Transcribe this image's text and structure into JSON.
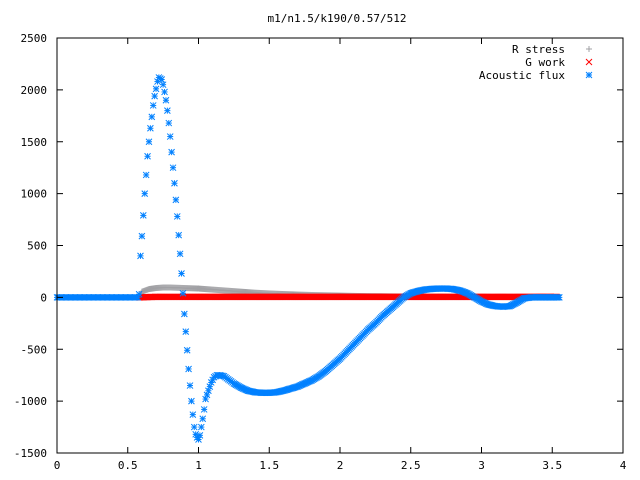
{
  "chart_data": {
    "type": "scatter",
    "title": "m1/n1.5/k190/0.57/512",
    "xlabel": "",
    "ylabel": "",
    "xlim": [
      0,
      4
    ],
    "ylim": [
      -1500,
      2500
    ],
    "xticks": [
      "0",
      "0.5",
      "1",
      "1.5",
      "2",
      "2.5",
      "3",
      "3.5",
      "4"
    ],
    "yticks": [
      "-1500",
      "-1000",
      "-500",
      "0",
      "500",
      "1000",
      "1500",
      "2000",
      "2500"
    ],
    "legend_position": "top-right",
    "grid": false,
    "series": [
      {
        "name": "R stress",
        "marker": "plus",
        "color": "#a0a0a4",
        "x": [
          0.58,
          0.6,
          0.65,
          0.7,
          0.75,
          0.8,
          0.9,
          1.0,
          1.1,
          1.2,
          1.3,
          1.4,
          1.5,
          1.6,
          1.7,
          1.8,
          1.9,
          2.0,
          2.1,
          2.2,
          2.4,
          2.6,
          2.8,
          3.0,
          3.2,
          3.4,
          3.53
        ],
        "y": [
          0,
          55,
          80,
          90,
          95,
          95,
          90,
          85,
          75,
          65,
          55,
          45,
          38,
          32,
          27,
          23,
          20,
          17,
          14,
          12,
          9,
          7,
          5,
          4,
          3,
          2,
          1
        ]
      },
      {
        "name": "G work",
        "marker": "cross",
        "color": "#ff0000",
        "x": [
          0.58,
          0.7,
          0.85,
          1.0,
          1.2,
          1.4,
          1.6,
          1.8,
          2.0,
          2.2,
          2.4,
          2.6,
          2.8,
          3.0,
          3.2,
          3.4,
          3.53
        ],
        "y": [
          0,
          5,
          5,
          5,
          5,
          5,
          5,
          5,
          5,
          5,
          5,
          5,
          5,
          5,
          5,
          5,
          5
        ]
      },
      {
        "name": "Acoustic flux",
        "marker": "star",
        "color": "#0080ff",
        "x": [
          0.0,
          0.57,
          0.58,
          0.59,
          0.6,
          0.61,
          0.62,
          0.63,
          0.64,
          0.65,
          0.66,
          0.67,
          0.68,
          0.69,
          0.7,
          0.71,
          0.72,
          0.73,
          0.74,
          0.75,
          0.76,
          0.77,
          0.78,
          0.79,
          0.8,
          0.81,
          0.82,
          0.83,
          0.84,
          0.85,
          0.86,
          0.87,
          0.88,
          0.89,
          0.9,
          0.91,
          0.92,
          0.93,
          0.94,
          0.95,
          0.96,
          0.97,
          0.98,
          0.99,
          1.0,
          1.01,
          1.02,
          1.03,
          1.04,
          1.05,
          1.07,
          1.09,
          1.11,
          1.13,
          1.15,
          1.18,
          1.21,
          1.25,
          1.3,
          1.35,
          1.4,
          1.45,
          1.5,
          1.55,
          1.6,
          1.65,
          1.7,
          1.75,
          1.8,
          1.85,
          1.9,
          1.95,
          2.0,
          2.05,
          2.1,
          2.15,
          2.2,
          2.25,
          2.3,
          2.35,
          2.4,
          2.45,
          2.5,
          2.55,
          2.6,
          2.65,
          2.7,
          2.75,
          2.8,
          2.85,
          2.9,
          2.95,
          3.0,
          3.05,
          3.1,
          3.15,
          3.2,
          3.25,
          3.3,
          3.35,
          3.4,
          3.45,
          3.5,
          3.55
        ],
        "y": [
          0,
          0,
          30,
          400,
          590,
          790,
          1000,
          1180,
          1360,
          1500,
          1630,
          1740,
          1850,
          1940,
          2010,
          2080,
          2120,
          2110,
          2100,
          2050,
          1980,
          1900,
          1800,
          1680,
          1550,
          1400,
          1250,
          1100,
          940,
          780,
          600,
          420,
          230,
          40,
          -160,
          -330,
          -510,
          -690,
          -850,
          -1000,
          -1130,
          -1250,
          -1320,
          -1350,
          -1370,
          -1330,
          -1250,
          -1170,
          -1080,
          -980,
          -900,
          -820,
          -770,
          -750,
          -750,
          -760,
          -790,
          -830,
          -870,
          -900,
          -915,
          -920,
          -920,
          -915,
          -900,
          -880,
          -860,
          -830,
          -800,
          -760,
          -710,
          -650,
          -590,
          -520,
          -450,
          -380,
          -310,
          -250,
          -180,
          -120,
          -60,
          0,
          40,
          60,
          75,
          82,
          85,
          85,
          80,
          65,
          40,
          0,
          -40,
          -70,
          -85,
          -90,
          -85,
          -50,
          -10,
          0,
          0,
          0,
          0,
          0
        ]
      }
    ]
  }
}
